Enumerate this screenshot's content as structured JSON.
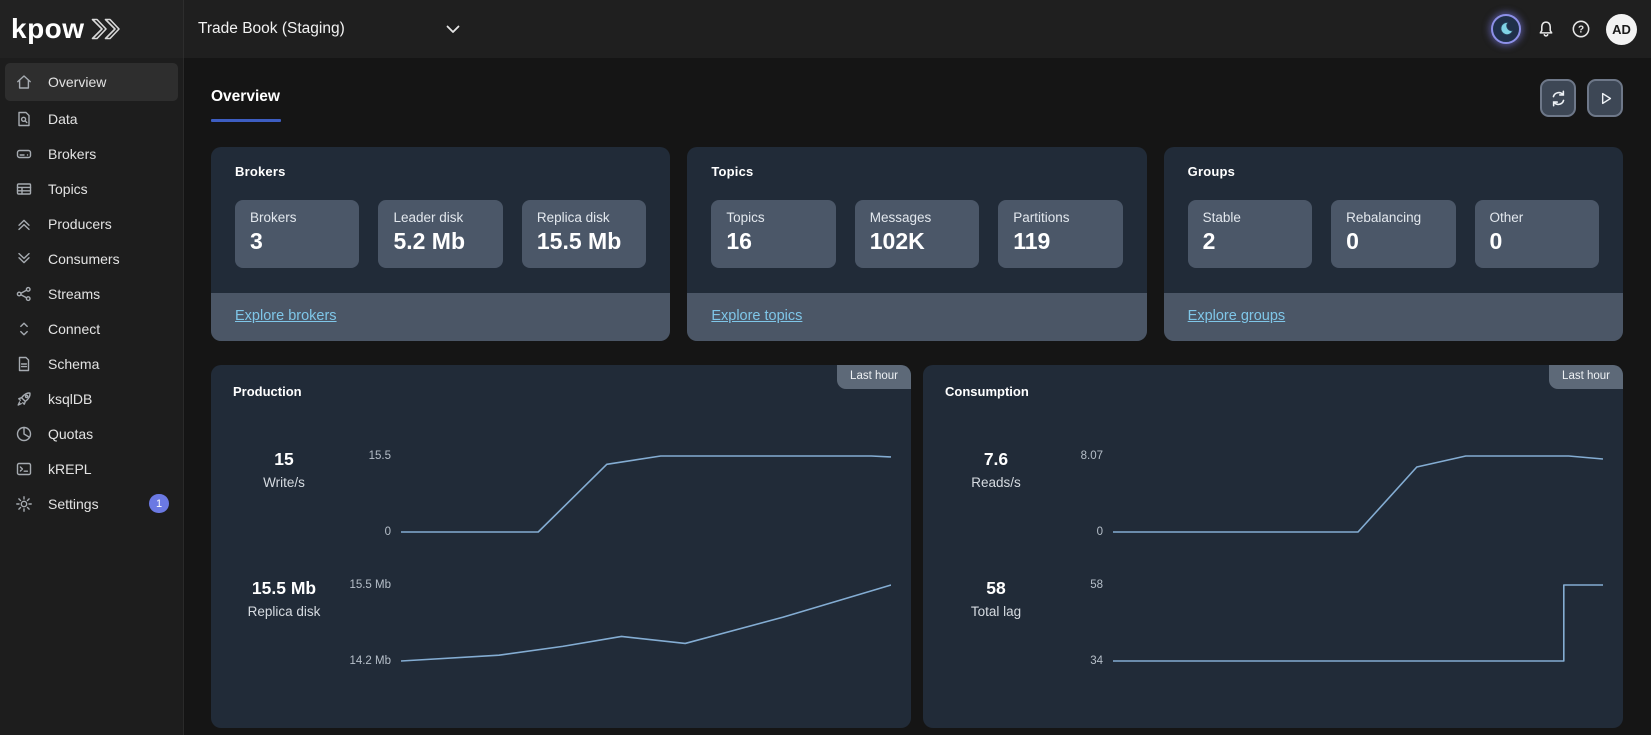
{
  "topbar": {
    "logo": "kpow",
    "environment_selector": "Trade Book (Staging)",
    "avatar_initials": "AD"
  },
  "sidebar": {
    "items": [
      {
        "label": "Overview",
        "icon": "home",
        "active": true
      },
      {
        "label": "Data",
        "icon": "doc-search"
      },
      {
        "label": "Brokers",
        "icon": "drive"
      },
      {
        "label": "Topics",
        "icon": "table"
      },
      {
        "label": "Producers",
        "icon": "chevrons-up"
      },
      {
        "label": "Consumers",
        "icon": "chevrons-down"
      },
      {
        "label": "Streams",
        "icon": "share"
      },
      {
        "label": "Connect",
        "icon": "connect"
      },
      {
        "label": "Schema",
        "icon": "document"
      },
      {
        "label": "ksqlDB",
        "icon": "rocket"
      },
      {
        "label": "Quotas",
        "icon": "pie"
      },
      {
        "label": "kREPL",
        "icon": "terminal"
      },
      {
        "label": "Settings",
        "icon": "gear",
        "badge": "1"
      }
    ]
  },
  "page": {
    "title": "Overview"
  },
  "summary_cards": [
    {
      "title": "Brokers",
      "stats": [
        {
          "label": "Brokers",
          "value": "3"
        },
        {
          "label": "Leader disk",
          "value": "5.2 Mb"
        },
        {
          "label": "Replica disk",
          "value": "15.5 Mb"
        }
      ],
      "link": "Explore brokers"
    },
    {
      "title": "Topics",
      "stats": [
        {
          "label": "Topics",
          "value": "16"
        },
        {
          "label": "Messages",
          "value": "102K"
        },
        {
          "label": "Partitions",
          "value": "119"
        }
      ],
      "link": "Explore topics"
    },
    {
      "title": "Groups",
      "stats": [
        {
          "label": "Stable",
          "value": "2"
        },
        {
          "label": "Rebalancing",
          "value": "0"
        },
        {
          "label": "Other",
          "value": "0"
        }
      ],
      "link": "Explore groups"
    }
  ],
  "chart_cards": [
    {
      "title": "Production",
      "tag": "Last hour",
      "charts": [
        {
          "stat_value": "15",
          "stat_label": "Write/s",
          "y_max_label": "15.5",
          "y_min_label": "0",
          "series_index": 0
        },
        {
          "stat_value": "15.5 Mb",
          "stat_label": "Replica disk",
          "y_max_label": "15.5 Mb",
          "y_min_label": "14.2 Mb",
          "series_index": 1
        }
      ]
    },
    {
      "title": "Consumption",
      "tag": "Last hour",
      "charts": [
        {
          "stat_value": "7.6",
          "stat_label": "Reads/s",
          "y_max_label": "8.07",
          "y_min_label": "0",
          "series_index": 2
        },
        {
          "stat_value": "58",
          "stat_label": "Total lag",
          "y_max_label": "58",
          "y_min_label": "34",
          "series_index": 3
        }
      ]
    }
  ],
  "chart_data": [
    {
      "type": "line",
      "title": "Production Write/s",
      "ylabel": "Write/s",
      "ylim": [
        0,
        15.5
      ],
      "xlabel": "last hour (fraction of window)",
      "x": [
        0,
        0.28,
        0.42,
        0.53,
        0.96,
        1
      ],
      "y": [
        0,
        0,
        13.8,
        15.5,
        15.5,
        15.3
      ],
      "current_value": 15,
      "grid": false,
      "legend": false
    },
    {
      "type": "line",
      "title": "Production Replica disk (Mb)",
      "ylabel": "Replica disk",
      "ylim": [
        14.2,
        15.5
      ],
      "xlabel": "last hour (fraction of window)",
      "x": [
        0,
        0.2,
        0.33,
        0.45,
        0.58,
        0.78,
        1
      ],
      "y": [
        14.2,
        14.3,
        14.45,
        14.62,
        14.5,
        14.95,
        15.5
      ],
      "current_value": 15.5,
      "grid": false,
      "legend": false
    },
    {
      "type": "line",
      "title": "Consumption Reads/s",
      "ylabel": "Reads/s",
      "ylim": [
        0,
        8.07
      ],
      "xlabel": "last hour (fraction of window)",
      "x": [
        0,
        0.5,
        0.62,
        0.72,
        0.93,
        1
      ],
      "y": [
        0,
        0,
        6.9,
        8.07,
        8.07,
        7.75
      ],
      "current_value": 7.6,
      "grid": false,
      "legend": false
    },
    {
      "type": "line",
      "title": "Consumption Total lag",
      "ylabel": "Total lag",
      "ylim": [
        34,
        58
      ],
      "xlabel": "last hour (fraction of window)",
      "x": [
        0,
        0.92,
        0.92,
        1
      ],
      "y": [
        34,
        34,
        58,
        58
      ],
      "current_value": 58,
      "grid": false,
      "legend": false
    }
  ],
  "colors": {
    "accent_underline": "#3d5dc1",
    "link_blue": "#7fc6e8",
    "chart_line": "#84add3",
    "badge_indigo": "#6b79e3",
    "card_bg": "#212b38",
    "tile_bg": "#4b5768",
    "tag_bg": "#5d6978",
    "moon_glow": "#8d90e8",
    "moon_crescent": "#7fd2e6"
  }
}
